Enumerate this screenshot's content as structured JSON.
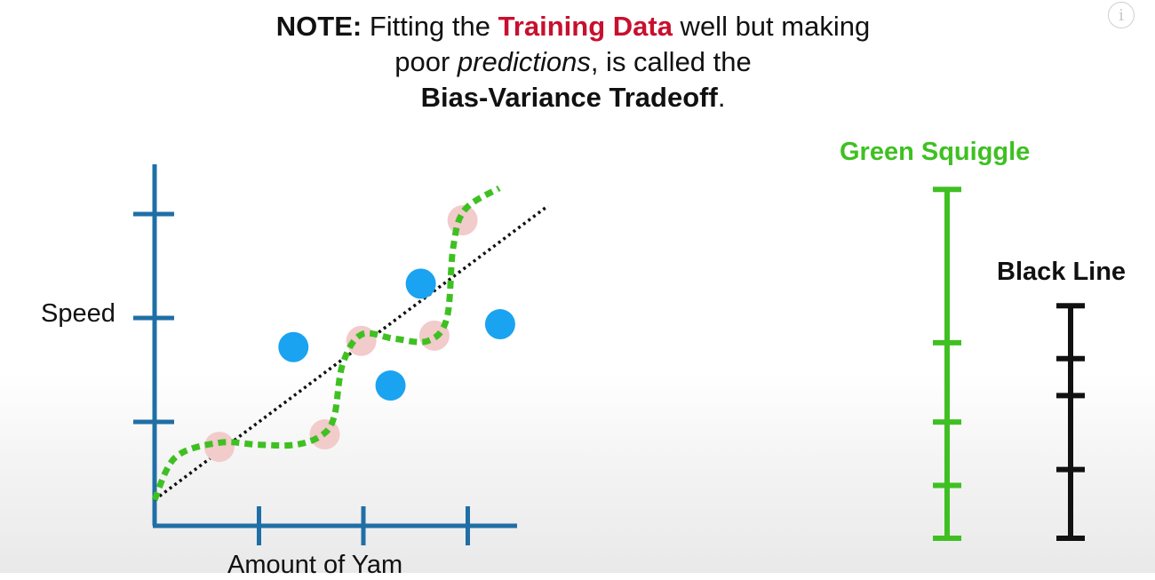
{
  "note": {
    "prefix": "NOTE:",
    "text1": " Fitting the ",
    "highlight": "Training Data",
    "text2": " well but making",
    "text3": "poor ",
    "emph": "predictions",
    "text4": ", is called the",
    "term": "Bias-Variance Tradeoff",
    "period": "."
  },
  "info_icon": "i",
  "axes": {
    "ylabel": "Speed",
    "xlabel": "Amount of Yam"
  },
  "legend": {
    "green_label": "Green Squiggle",
    "black_label": "Black Line"
  },
  "colors": {
    "axis": "#1f6fa6",
    "training_point": "#f2cbcb",
    "testing_point": "#1aa3f0",
    "green": "#3fc022",
    "black": "#111111",
    "highlight_red": "#c8102e"
  },
  "chart_data": {
    "type": "scatter",
    "xlabel": "Amount of Yam",
    "ylabel": "Speed",
    "x_ticks": 3,
    "y_ticks": 3,
    "series": [
      {
        "kind": "training",
        "points": [
          [
            0.62,
            0.76
          ],
          [
            1.63,
            0.88
          ],
          [
            1.98,
            1.78
          ],
          [
            2.68,
            1.83
          ],
          [
            2.95,
            2.94
          ]
        ]
      },
      {
        "kind": "testing",
        "points": [
          [
            1.33,
            1.72
          ],
          [
            2.26,
            1.35
          ],
          [
            2.55,
            2.33
          ],
          [
            3.31,
            1.94
          ]
        ]
      }
    ],
    "black_line": [
      [
        0,
        0.25
      ],
      [
        3.77,
        3.08
      ]
    ],
    "green_squiggle": [
      [
        0,
        0.25
      ],
      [
        0.2,
        0.66
      ],
      [
        0.62,
        0.8
      ],
      [
        1.0,
        0.78
      ],
      [
        1.35,
        0.78
      ],
      [
        1.6,
        0.87
      ],
      [
        1.72,
        1.05
      ],
      [
        1.8,
        1.55
      ],
      [
        1.98,
        1.84
      ],
      [
        2.3,
        1.8
      ],
      [
        2.62,
        1.78
      ],
      [
        2.8,
        2.0
      ],
      [
        2.86,
        2.68
      ],
      [
        2.97,
        3.04
      ],
      [
        3.3,
        3.25
      ]
    ],
    "bars": {
      "green_squiggle": {
        "ticks": [
          0,
          1,
          2.2,
          3.7,
          6.6
        ]
      },
      "black_line": {
        "ticks": [
          0,
          1.3,
          2.7,
          3.4,
          4.4
        ]
      }
    }
  }
}
